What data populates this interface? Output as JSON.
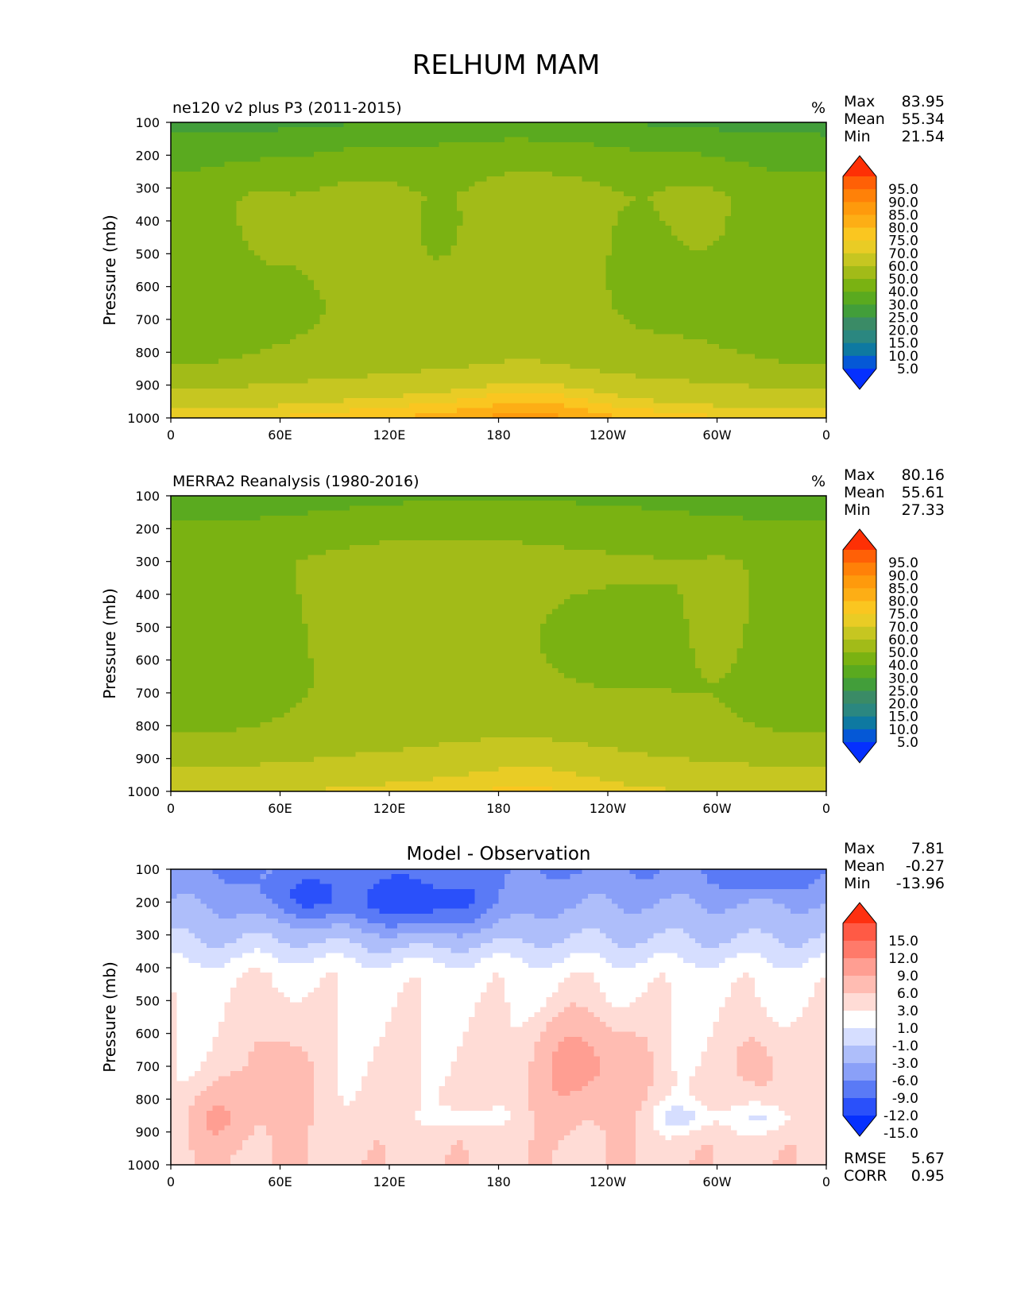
{
  "page_title": "RELHUM MAM",
  "colors": {
    "abs": [
      "#0530fe",
      "#0558d6",
      "#0e79a1",
      "#2b8780",
      "#3a8b66",
      "#429e3a",
      "#5aaa1f",
      "#7ab212",
      "#a2bb18",
      "#c6c621",
      "#e9cc25",
      "#fac620",
      "#fdae15",
      "#fe9a0c",
      "#ff8108",
      "#ff6006",
      "#fe3005"
    ],
    "diff": [
      "#0630fe",
      "#2a50fa",
      "#5a7af6",
      "#8aa0f8",
      "#aebefa",
      "#d6deff",
      "#ffffff",
      "#ffdcd6",
      "#ffbcb2",
      "#ff9e92",
      "#ff7a6a",
      "#ff5a45",
      "#fe3010"
    ]
  },
  "chart_data": [
    {
      "type": "contour",
      "title": "ne120 v2 plus P3 (2011-2015)",
      "units": "%",
      "ylabel": "Pressure (mb)",
      "yticks": [
        "100",
        "200",
        "300",
        "400",
        "500",
        "600",
        "700",
        "800",
        "900",
        "1000"
      ],
      "xticks": [
        "0",
        "60E",
        "120E",
        "180",
        "120W",
        "60W",
        "0"
      ],
      "ylim": [
        100,
        1000
      ],
      "stats": [
        {
          "label": "Max",
          "value": "83.95"
        },
        {
          "label": "Mean",
          "value": "55.34"
        },
        {
          "label": "Min",
          "value": "21.54"
        }
      ],
      "colorbar_levels": [
        "95.0",
        "90.0",
        "85.0",
        "80.0",
        "75.0",
        "70.0",
        "60.0",
        "50.0",
        "40.0",
        "30.0",
        "25.0",
        "20.0",
        "15.0",
        "10.0",
        "5.0"
      ]
    },
    {
      "type": "contour",
      "title": "MERRA2 Reanalysis (1980-2016)",
      "units": "%",
      "ylabel": "Pressure (mb)",
      "yticks": [
        "100",
        "200",
        "300",
        "400",
        "500",
        "600",
        "700",
        "800",
        "900",
        "1000"
      ],
      "xticks": [
        "0",
        "60E",
        "120E",
        "180",
        "120W",
        "60W",
        "0"
      ],
      "ylim": [
        100,
        1000
      ],
      "stats": [
        {
          "label": "Max",
          "value": "80.16"
        },
        {
          "label": "Mean",
          "value": "55.61"
        },
        {
          "label": "Min",
          "value": "27.33"
        }
      ],
      "colorbar_levels": [
        "95.0",
        "90.0",
        "85.0",
        "80.0",
        "75.0",
        "70.0",
        "60.0",
        "50.0",
        "40.0",
        "30.0",
        "25.0",
        "20.0",
        "15.0",
        "10.0",
        "5.0"
      ]
    },
    {
      "type": "contour",
      "title": "Model - Observation",
      "ylabel": "Pressure (mb)",
      "yticks": [
        "100",
        "200",
        "300",
        "400",
        "500",
        "600",
        "700",
        "800",
        "900",
        "1000"
      ],
      "xticks": [
        "0",
        "60E",
        "120E",
        "180",
        "120W",
        "60W",
        "0"
      ],
      "ylim": [
        100,
        1000
      ],
      "stats": [
        {
          "label": "Max",
          "value": "7.81"
        },
        {
          "label": "Mean",
          "value": "-0.27"
        },
        {
          "label": "Min",
          "value": "-13.96"
        }
      ],
      "colorbar_levels": [
        "15.0",
        "12.0",
        "9.0",
        "6.0",
        "3.0",
        "1.0",
        "-1.0",
        "-3.0",
        "-6.0",
        "-9.0",
        "-12.0",
        "-15.0"
      ],
      "metrics": [
        {
          "label": "RMSE",
          "value": "5.67"
        },
        {
          "label": "CORR",
          "value": "0.95"
        }
      ]
    }
  ]
}
